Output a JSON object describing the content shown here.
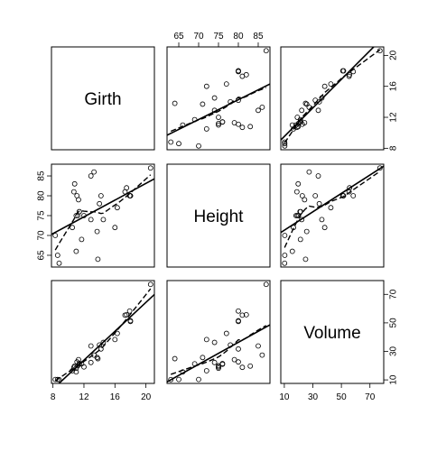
{
  "chart_data": {
    "type": "scatter",
    "variables": [
      "Girth",
      "Height",
      "Volume"
    ],
    "axis_ticks": {
      "Girth": [
        8,
        12,
        16,
        20
      ],
      "Height": [
        65,
        70,
        75,
        80,
        85
      ],
      "Volume": [
        10,
        30,
        50,
        70
      ]
    },
    "axis_ranges": {
      "Girth": [
        8.3,
        20.6
      ],
      "Height": [
        63,
        87
      ],
      "Volume": [
        10.2,
        77
      ]
    },
    "panel_lines": [
      "least-squares line (solid)",
      "smoother (dashed)"
    ],
    "grid": false,
    "data": {
      "Girth": [
        8.3,
        8.6,
        8.8,
        10.5,
        10.7,
        10.8,
        11.0,
        11.0,
        11.1,
        11.2,
        11.3,
        11.4,
        11.4,
        11.7,
        12.0,
        12.9,
        12.9,
        13.3,
        13.7,
        13.8,
        14.0,
        14.2,
        14.5,
        16.0,
        16.3,
        17.3,
        17.5,
        17.9,
        18.0,
        18.0,
        20.6
      ],
      "Height": [
        70,
        65,
        63,
        72,
        81,
        83,
        66,
        75,
        80,
        75,
        79,
        76,
        76,
        69,
        75,
        74,
        85,
        86,
        71,
        64,
        78,
        80,
        74,
        72,
        77,
        81,
        82,
        80,
        80,
        80,
        87
      ],
      "Volume": [
        10.3,
        10.3,
        10.2,
        16.4,
        18.8,
        19.7,
        15.6,
        18.2,
        22.6,
        19.9,
        24.2,
        21.0,
        21.4,
        21.3,
        19.1,
        22.2,
        33.8,
        27.4,
        25.7,
        24.9,
        34.5,
        31.7,
        36.3,
        38.3,
        42.6,
        55.4,
        55.7,
        58.3,
        51.5,
        51.0,
        77.0
      ]
    }
  }
}
